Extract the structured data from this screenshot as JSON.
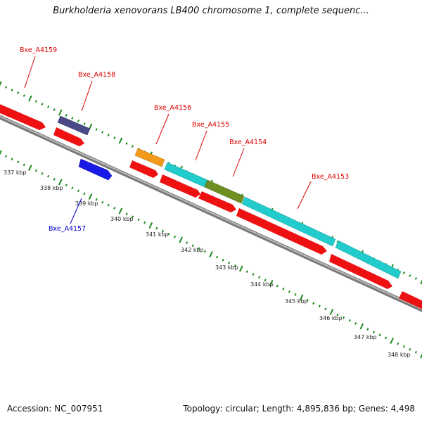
{
  "title": "Burkholderia xenovorans LB400 chromosome 1, complete sequenc...",
  "footer": {
    "accession": "Accession: NC_007951",
    "topology": "Topology: circular; Length: 4,895,836 bp; Genes: 4,498"
  },
  "colors": {
    "backbone": "#8c8c8c",
    "gc_ticks": "#1e8c1e",
    "reverse_gene": "#ee1111",
    "label_red": "#dd0000",
    "label_blue": "#0000cc",
    "cds_cyan": "#22cccc",
    "cds_orange": "#f39a1a",
    "cds_olive": "#6d8f22",
    "cds_slate": "#4a4a88",
    "cds_blue": "#1a1ae6"
  },
  "ticks": [
    "337 kbp",
    "338 kbp",
    "339 kbp",
    "340 kbp",
    "341 kbp",
    "342 kbp",
    "343 kbp",
    "344 kbp",
    "345 kbp",
    "346 kbp",
    "347 kbp",
    "348 kbp"
  ],
  "gene_labels": [
    {
      "id": "Bxe_A4159",
      "strand": "reverse"
    },
    {
      "id": "Bxe_A4158",
      "strand": "reverse"
    },
    {
      "id": "Bxe_A4156",
      "strand": "reverse"
    },
    {
      "id": "Bxe_A4155",
      "strand": "reverse"
    },
    {
      "id": "Bxe_A4154",
      "strand": "reverse"
    },
    {
      "id": "Bxe_A4153",
      "strand": "reverse"
    },
    {
      "id": "Bxe_A4157",
      "strand": "forward"
    }
  ]
}
